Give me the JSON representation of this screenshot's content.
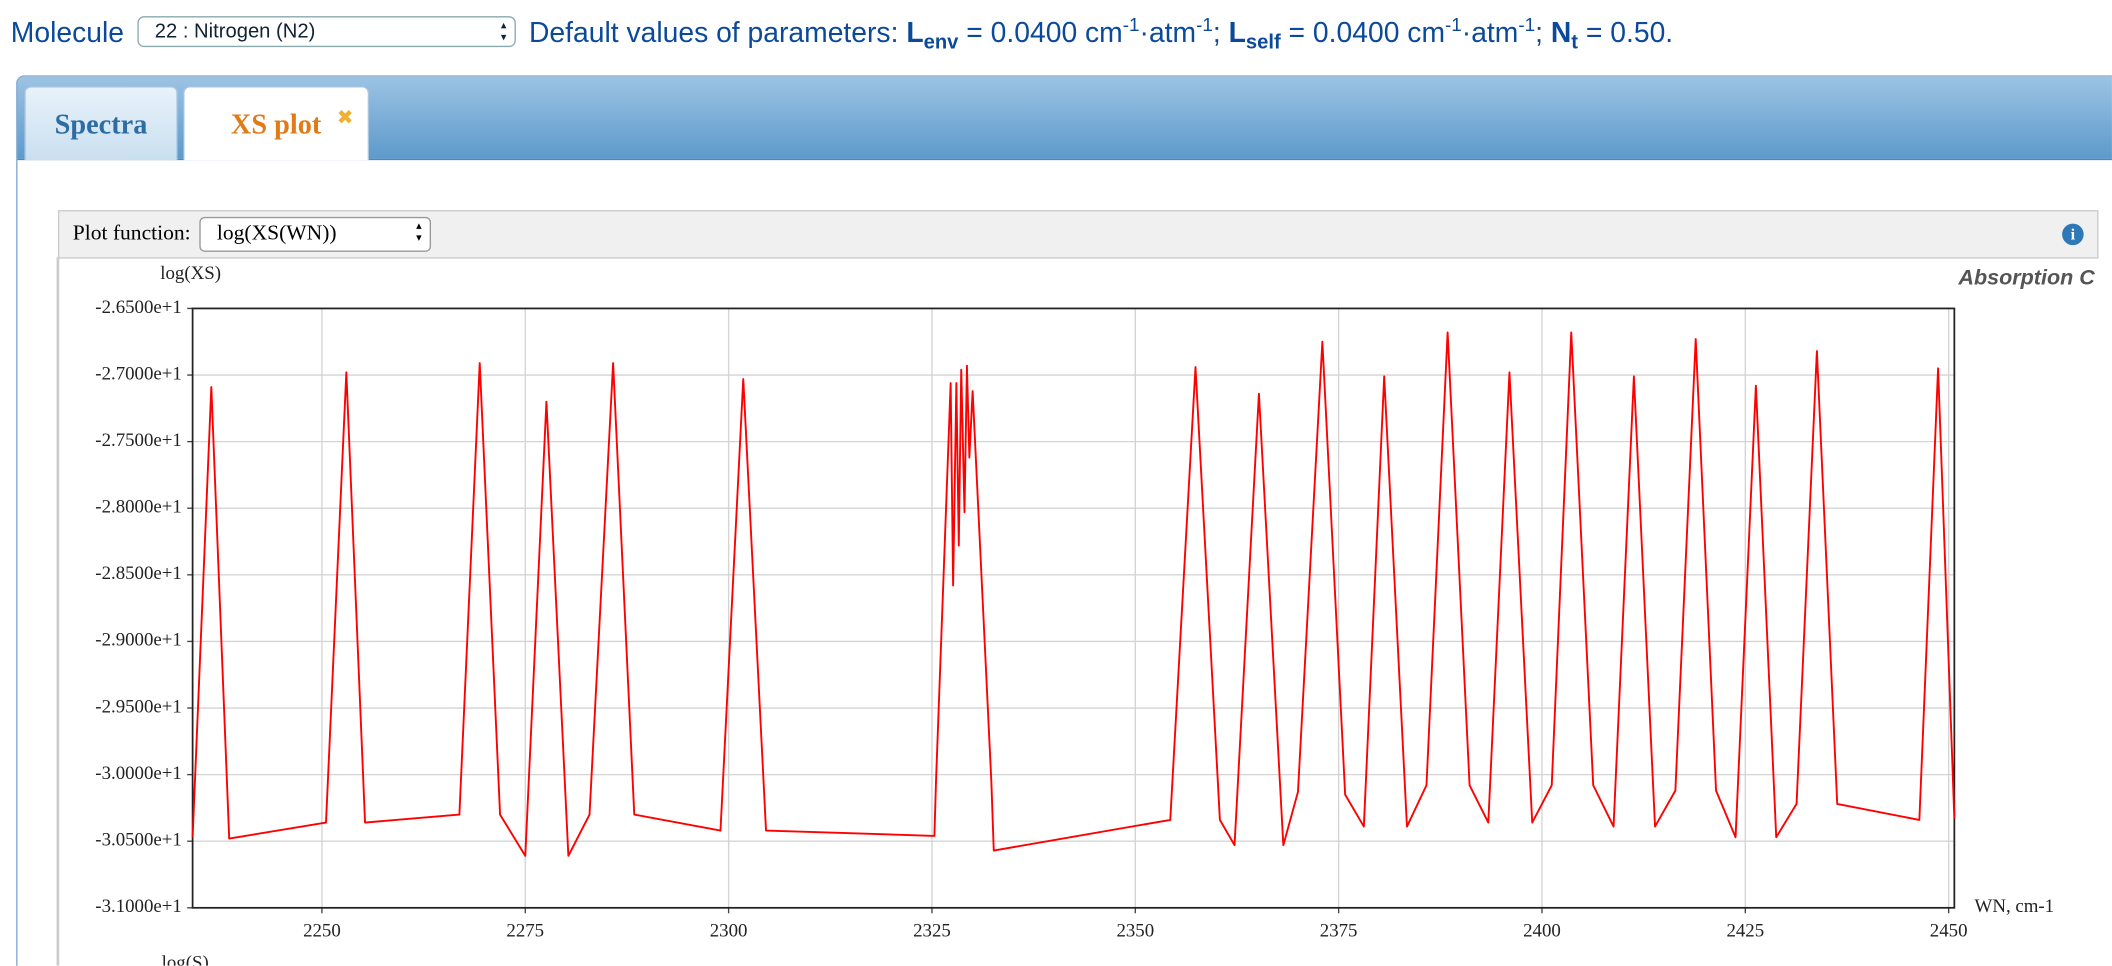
{
  "header": {
    "label": "Molecule",
    "molecule": "22 : Nitrogen (N2)",
    "intro": "Default values of parameters:",
    "parameters": [
      {
        "symbol": "L",
        "sub": "env",
        "text": " = 0.0400 cm",
        "sup1": "-1",
        "text2": "·atm",
        "sup2": "-1",
        "end": "; "
      },
      {
        "symbol": "L",
        "sub": "self",
        "text": " = 0.0400 cm",
        "sup1": "-1",
        "text2": "·atm",
        "sup2": "-1",
        "end": "; "
      },
      {
        "symbol": "N",
        "sub": "t",
        "text": " = 0.50."
      }
    ]
  },
  "tabs": [
    "Spectra",
    "XS plot"
  ],
  "plot_function": {
    "label": "Plot function:",
    "value": "log(XS(WN))"
  },
  "chart_data": {
    "type": "line",
    "title": "Absorption C",
    "y_label": "log(XS)",
    "x_label": "WN, cm-1",
    "next_label": "log(S)",
    "color": "#ff0000",
    "grid": true,
    "xlim": [
      2234.1,
      2450.7
    ],
    "xticks": [
      2250,
      2275,
      2300,
      2325,
      2350,
      2375,
      2400,
      2425,
      2450
    ],
    "ylim": [
      -31.0,
      -26.5
    ],
    "yticks": [
      {
        "value": -26.5,
        "label": "-2.6500e+1"
      },
      {
        "value": -27.0,
        "label": "-2.7000e+1"
      },
      {
        "value": -27.5,
        "label": "-2.7500e+1"
      },
      {
        "value": -28.0,
        "label": "-2.8000e+1"
      },
      {
        "value": -28.5,
        "label": "-2.8500e+1"
      },
      {
        "value": -29.0,
        "label": "-2.9000e+1"
      },
      {
        "value": -29.5,
        "label": "-2.9500e+1"
      },
      {
        "value": -30.0,
        "label": "-3.0000e+1"
      },
      {
        "value": -30.5,
        "label": "-3.0500e+1"
      },
      {
        "value": -31.0,
        "label": "-3.1000e+1"
      }
    ],
    "x": [
      2234.1,
      2236.4,
      2238.6,
      2250.5,
      2253.0,
      2255.3,
      2266.9,
      2269.4,
      2271.9,
      2275.0,
      2277.6,
      2280.3,
      2282.9,
      2285.8,
      2288.4,
      2299.0,
      2301.8,
      2304.6,
      2325.3,
      2325.5,
      2327.3,
      2327.6,
      2328.0,
      2328.3,
      2328.6,
      2329.0,
      2329.3,
      2329.6,
      2330.0,
      2332.3,
      2332.6,
      2354.3,
      2357.4,
      2360.4,
      2362.2,
      2365.2,
      2368.2,
      2370.0,
      2373.0,
      2375.8,
      2378.1,
      2380.6,
      2383.4,
      2385.8,
      2388.4,
      2391.1,
      2393.4,
      2396.0,
      2398.8,
      2401.2,
      2403.6,
      2406.3,
      2408.8,
      2411.3,
      2413.9,
      2416.4,
      2418.9,
      2421.4,
      2423.8,
      2426.3,
      2428.8,
      2431.3,
      2433.8,
      2436.3,
      2446.4,
      2448.7,
      2450.7
    ],
    "values": [
      -30.47,
      -27.09,
      -30.48,
      -30.36,
      -26.98,
      -30.36,
      -30.3,
      -26.91,
      -30.3,
      -30.61,
      -27.2,
      -30.61,
      -30.3,
      -26.91,
      -30.3,
      -30.42,
      -27.03,
      -30.42,
      -30.46,
      -30.05,
      -27.06,
      -28.58,
      -27.06,
      -28.28,
      -26.96,
      -28.03,
      -26.93,
      -27.62,
      -27.12,
      -30.05,
      -30.57,
      -30.34,
      -26.94,
      -30.34,
      -30.53,
      -27.14,
      -30.53,
      -30.13,
      -26.75,
      -30.15,
      -30.39,
      -27.01,
      -30.39,
      -30.08,
      -26.68,
      -30.08,
      -30.36,
      -26.98,
      -30.36,
      -30.08,
      -26.68,
      -30.08,
      -30.39,
      -27.01,
      -30.39,
      -30.12,
      -26.73,
      -30.12,
      -30.47,
      -27.08,
      -30.47,
      -30.22,
      -26.82,
      -30.22,
      -30.34,
      -26.95,
      -30.33
    ]
  }
}
